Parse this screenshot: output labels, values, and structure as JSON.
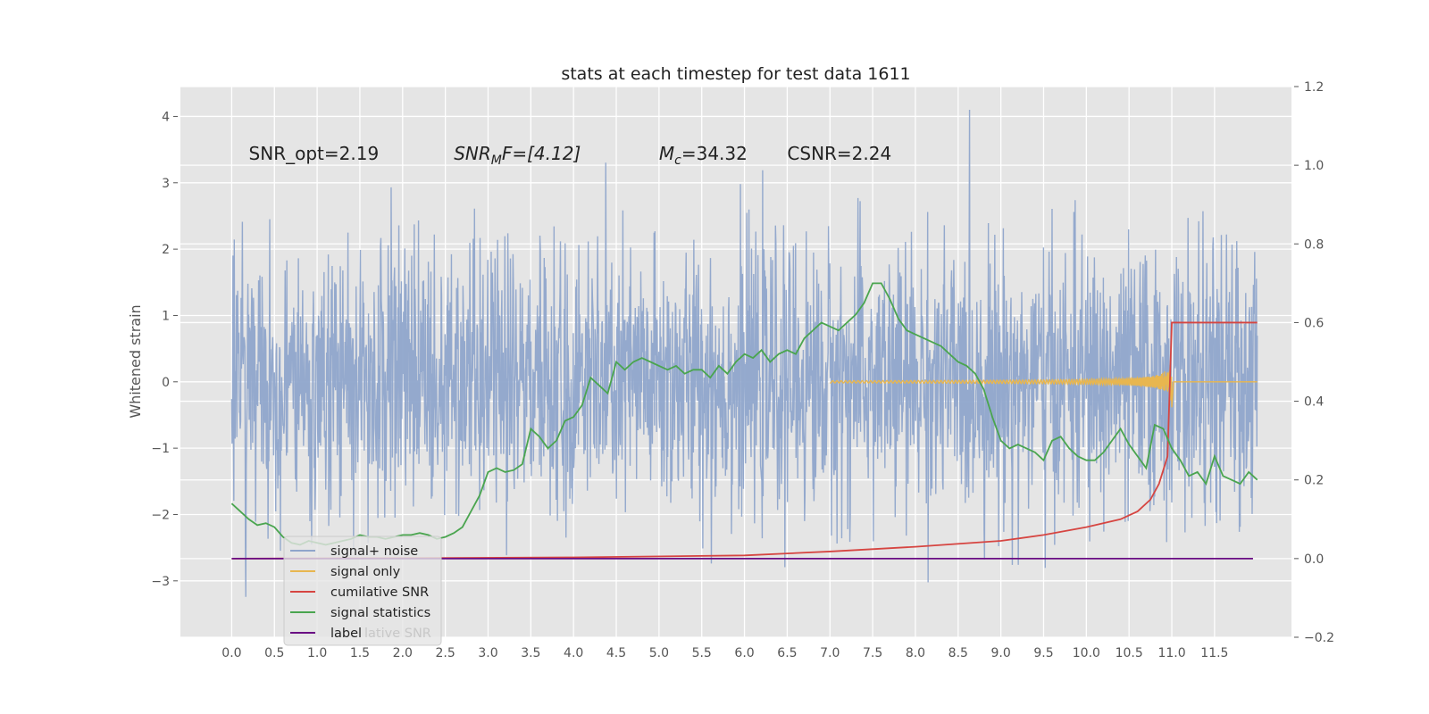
{
  "chart_data": {
    "type": "line",
    "title": "stats at each timestep for test data 1611",
    "ylabel": "Whitened strain",
    "xlabel": "",
    "xlim": [
      -0.6,
      12.4
    ],
    "ylim": [
      -3.85,
      4.45
    ],
    "y2lim": [
      -0.2,
      1.2
    ],
    "x_ticks": [
      "0.0",
      "0.5",
      "1.0",
      "1.5",
      "2.0",
      "2.5",
      "3.0",
      "3.5",
      "4.0",
      "4.5",
      "5.0",
      "5.5",
      "6.0",
      "6.5",
      "7.0",
      "7.5",
      "8.0",
      "8.5",
      "9.0",
      "9.5",
      "10.0",
      "10.5",
      "11.0",
      "11.5"
    ],
    "y_ticks": [
      -3,
      -2,
      -1,
      0,
      1,
      2,
      3,
      4
    ],
    "y2_ticks": [
      "-0.2",
      "0.0",
      "0.2",
      "0.4",
      "0.6",
      "0.8",
      "1.0",
      "1.2"
    ],
    "grid": true,
    "legend_position": "lower-left",
    "annotations": [
      {
        "label": "SNR_opt=2.19",
        "x": 0.2,
        "y": 3.35
      },
      {
        "label": "SNR",
        "sub": "M",
        "rest": "F=[4.12]",
        "x": 2.6,
        "y": 3.35
      },
      {
        "label": "M",
        "sub": "c",
        "rest": "=34.32",
        "x": 5.0,
        "y": 3.35
      },
      {
        "label": "CSNR=2.24",
        "x": 6.5,
        "y": 3.35
      }
    ],
    "legend_ghost_text": "lative SNR",
    "series": [
      {
        "name": "signal+ noise",
        "color": "#8fa5cb",
        "axis": "left",
        "style": "noise",
        "x_range": [
          0,
          12.0
        ],
        "sigma": 1.0
      },
      {
        "name": "signal only",
        "color": "#e8b64f",
        "axis": "left",
        "style": "chirp",
        "merger_x": 11.0,
        "peak_amplitude": 0.6
      },
      {
        "name": "cumilative SNR",
        "color": "#d64541",
        "axis": "right",
        "x": [
          0,
          2,
          4,
          6,
          7,
          8,
          9,
          9.5,
          10,
          10.4,
          10.6,
          10.75,
          10.85,
          10.95,
          11.0,
          12.0
        ],
        "y": [
          0,
          0.001,
          0.003,
          0.008,
          0.018,
          0.03,
          0.045,
          0.06,
          0.08,
          0.1,
          0.12,
          0.15,
          0.19,
          0.26,
          0.6,
          0.6
        ]
      },
      {
        "name": "signal statistics",
        "color": "#4aa54f",
        "axis": "right",
        "x": [
          0,
          0.1,
          0.2,
          0.3,
          0.4,
          0.5,
          0.6,
          0.7,
          0.8,
          0.9,
          1.0,
          1.1,
          1.2,
          1.3,
          1.4,
          1.5,
          1.6,
          1.7,
          1.8,
          1.9,
          2.0,
          2.1,
          2.2,
          2.3,
          2.4,
          2.5,
          2.6,
          2.7,
          2.8,
          2.9,
          3.0,
          3.1,
          3.2,
          3.3,
          3.4,
          3.5,
          3.6,
          3.7,
          3.8,
          3.9,
          4.0,
          4.1,
          4.2,
          4.3,
          4.4,
          4.5,
          4.6,
          4.7,
          4.8,
          4.9,
          5.0,
          5.1,
          5.2,
          5.3,
          5.4,
          5.5,
          5.6,
          5.7,
          5.8,
          5.9,
          6.0,
          6.1,
          6.2,
          6.3,
          6.4,
          6.5,
          6.6,
          6.7,
          6.8,
          6.9,
          7.0,
          7.1,
          7.2,
          7.3,
          7.4,
          7.5,
          7.6,
          7.7,
          7.8,
          7.9,
          8.0,
          8.1,
          8.2,
          8.3,
          8.4,
          8.5,
          8.6,
          8.7,
          8.8,
          8.9,
          9.0,
          9.1,
          9.2,
          9.3,
          9.4,
          9.5,
          9.6,
          9.7,
          9.8,
          9.9,
          10.0,
          10.1,
          10.2,
          10.3,
          10.4,
          10.5,
          10.6,
          10.7,
          10.8,
          10.9,
          11.0,
          11.1,
          11.2,
          11.3,
          11.4,
          11.5,
          11.6,
          11.7,
          11.8,
          11.9,
          12.0
        ],
        "y": [
          0.14,
          0.12,
          0.1,
          0.085,
          0.09,
          0.08,
          0.055,
          0.04,
          0.035,
          0.045,
          0.04,
          0.035,
          0.04,
          0.045,
          0.05,
          0.06,
          0.055,
          0.055,
          0.05,
          0.055,
          0.06,
          0.06,
          0.065,
          0.06,
          0.05,
          0.055,
          0.065,
          0.08,
          0.12,
          0.16,
          0.22,
          0.23,
          0.22,
          0.225,
          0.24,
          0.33,
          0.31,
          0.28,
          0.3,
          0.35,
          0.36,
          0.39,
          0.46,
          0.44,
          0.42,
          0.5,
          0.48,
          0.5,
          0.51,
          0.5,
          0.49,
          0.48,
          0.49,
          0.47,
          0.48,
          0.48,
          0.46,
          0.49,
          0.47,
          0.5,
          0.52,
          0.51,
          0.53,
          0.5,
          0.52,
          0.53,
          0.52,
          0.56,
          0.58,
          0.6,
          0.59,
          0.58,
          0.6,
          0.62,
          0.65,
          0.7,
          0.7,
          0.66,
          0.61,
          0.58,
          0.57,
          0.56,
          0.55,
          0.54,
          0.52,
          0.5,
          0.49,
          0.47,
          0.43,
          0.36,
          0.3,
          0.28,
          0.29,
          0.28,
          0.27,
          0.25,
          0.3,
          0.31,
          0.28,
          0.26,
          0.25,
          0.25,
          0.27,
          0.3,
          0.33,
          0.29,
          0.26,
          0.23,
          0.34,
          0.33,
          0.28,
          0.25,
          0.21,
          0.22,
          0.19,
          0.26,
          0.21,
          0.2,
          0.19,
          0.22,
          0.2
        ]
      },
      {
        "name": "label",
        "color": "#6a0d83",
        "axis": "right",
        "x": [
          0,
          11.95
        ],
        "y": [
          0,
          0
        ]
      }
    ]
  }
}
